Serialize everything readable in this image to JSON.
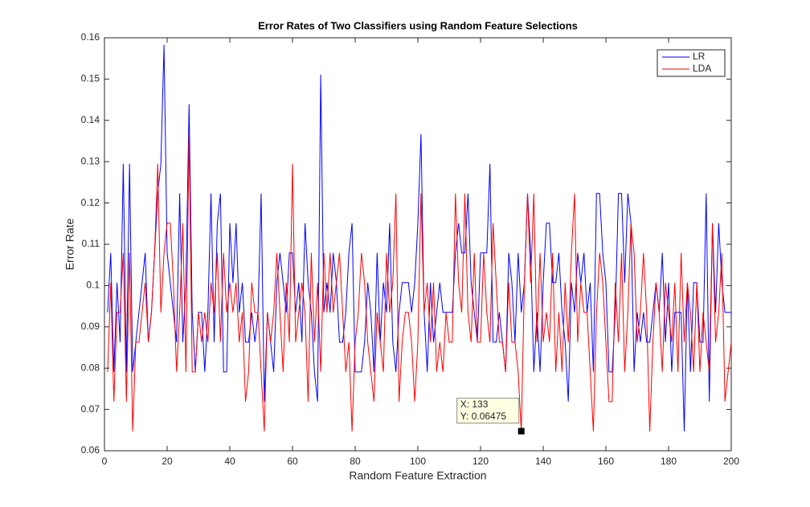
{
  "chart_data": {
    "type": "line",
    "title": "Error Rates of Two Classifiers using Random Feature Selections",
    "x_label": "Random Feature Extraction",
    "y_label": "Error Rate",
    "xlim": [
      0,
      200
    ],
    "xticks": [
      0,
      20,
      40,
      60,
      80,
      100,
      120,
      140,
      160,
      180,
      200
    ],
    "ylim": [
      0.06,
      0.16
    ],
    "yticks": [
      0.06,
      0.07,
      0.08,
      0.09,
      0.1,
      0.11,
      0.12,
      0.13,
      0.14,
      0.15,
      0.16
    ],
    "legend": "top-right",
    "x": [
      1,
      2,
      3,
      4,
      5,
      6,
      7,
      8,
      9,
      10,
      11,
      12,
      13,
      14,
      15,
      16,
      17,
      18,
      19,
      20,
      21,
      22,
      23,
      24,
      25,
      26,
      27,
      28,
      29,
      30,
      31,
      32,
      33,
      34,
      35,
      36,
      37,
      38,
      39,
      40,
      41,
      42,
      43,
      44,
      45,
      46,
      47,
      48,
      49,
      50,
      51,
      52,
      53,
      54,
      55,
      56,
      57,
      58,
      59,
      60,
      61,
      62,
      63,
      64,
      65,
      66,
      67,
      68,
      69,
      70,
      71,
      72,
      73,
      74,
      75,
      76,
      77,
      78,
      79,
      80,
      81,
      82,
      83,
      84,
      85,
      86,
      87,
      88,
      89,
      90,
      91,
      92,
      93,
      94,
      95,
      96,
      97,
      98,
      99,
      100,
      101,
      102,
      103,
      104,
      105,
      106,
      107,
      108,
      109,
      110,
      111,
      112,
      113,
      114,
      115,
      116,
      117,
      118,
      119,
      120,
      121,
      122,
      123,
      124,
      125,
      126,
      127,
      128,
      129,
      130,
      131,
      132,
      133,
      134,
      135,
      136,
      137,
      138,
      139,
      140,
      141,
      142,
      143,
      144,
      145,
      146,
      147,
      148,
      149,
      150,
      151,
      152,
      153,
      154,
      155,
      156,
      157,
      158,
      159,
      160,
      161,
      162,
      163,
      164,
      165,
      166,
      167,
      168,
      169,
      170,
      171,
      172,
      173,
      174,
      175,
      176,
      177,
      178,
      179,
      180,
      181,
      182,
      183,
      184,
      185,
      186,
      187,
      188,
      189,
      190,
      191,
      192,
      193,
      194,
      195,
      196,
      197,
      198,
      199,
      200
    ],
    "series": [
      {
        "name": "LR",
        "color": "#0000ff",
        "values": [
          0.0935,
          0.1079,
          0.0791,
          0.1007,
          0.0863,
          0.1295,
          0.0791,
          0.1295,
          0.0791,
          0.0863,
          0.0935,
          0.1007,
          0.1079,
          0.0863,
          0.0935,
          0.1079,
          0.1223,
          0.1295,
          0.1583,
          0.1079,
          0.1007,
          0.0935,
          0.0863,
          0.1223,
          0.0863,
          0.1007,
          0.1439,
          0.0935,
          0.0791,
          0.0935,
          0.0935,
          0.0791,
          0.0935,
          0.1223,
          0.0863,
          0.1151,
          0.1223,
          0.0791,
          0.0791,
          0.1151,
          0.1007,
          0.1151,
          0.0935,
          0.1007,
          0.0863,
          0.0863,
          0.0935,
          0.0863,
          0.0935,
          0.1223,
          0.0719,
          0.0935,
          0.0863,
          0.0791,
          0.1007,
          0.1079,
          0.1007,
          0.0935,
          0.1079,
          0.1079,
          0.0935,
          0.1007,
          0.0863,
          0.1151,
          0.1007,
          0.0935,
          0.0791,
          0.0719,
          0.1511,
          0.0935,
          0.1007,
          0.0935,
          0.1079,
          0.1007,
          0.0863,
          0.0863,
          0.0935,
          0.1079,
          0.1151,
          0.0791,
          0.0791,
          0.0791,
          0.0863,
          0.1007,
          0.0935,
          0.0791,
          0.1079,
          0.0863,
          0.1007,
          0.0935,
          0.1151,
          0.0863,
          0.0791,
          0.0935,
          0.1007,
          0.1007,
          0.1007,
          0.0935,
          0.1007,
          0.1151,
          0.1367,
          0.0935,
          0.0791,
          0.1007,
          0.0863,
          0.0935,
          0.1007,
          0.0935,
          0.0935,
          0.0935,
          0.0935,
          0.1079,
          0.1151,
          0.1079,
          0.1079,
          0.1223,
          0.1007,
          0.0935,
          0.0863,
          0.1079,
          0.1079,
          0.1079,
          0.1295,
          0.0863,
          0.0863,
          0.0935,
          0.0863,
          0.0791,
          0.1079,
          0.1007,
          0.0863,
          0.1079,
          0.0935,
          0.1007,
          0.1223,
          0.1079,
          0.0791,
          0.0935,
          0.0791,
          0.1007,
          0.1151,
          0.1151,
          0.1007,
          0.1007,
          0.1079,
          0.0935,
          0.0863,
          0.0719,
          0.1007,
          0.0935,
          0.1079,
          0.1007,
          0.1079,
          0.0935,
          0.1007,
          0.0791,
          0.1223,
          0.1223,
          0.1079,
          0.1007,
          0.0791,
          0.0791,
          0.0935,
          0.1223,
          0.1223,
          0.1007,
          0.1223,
          0.1151,
          0.0791,
          0.0935,
          0.0863,
          0.0935,
          0.0863,
          0.0863,
          0.0935,
          0.1007,
          0.0935,
          0.1079,
          0.0863,
          0.1007,
          0.0791,
          0.0935,
          0.0935,
          0.0935,
          0.0647,
          0.1007,
          0.0791,
          0.1007,
          0.1007,
          0.0863,
          0.0863,
          0.1223,
          0.0719,
          0.1151,
          0.0935,
          0.1151,
          0.1007,
          0.0935,
          0.0935,
          0.0935
        ]
      },
      {
        "name": "LDA",
        "color": "#ff0000",
        "values": [
          0.0791,
          0.1007,
          0.0719,
          0.0935,
          0.0935,
          0.1079,
          0.0719,
          0.1079,
          0.0647,
          0.0863,
          0.0863,
          0.0935,
          0.1007,
          0.0863,
          0.0935,
          0.1079,
          0.1295,
          0.0935,
          0.1079,
          0.1151,
          0.1151,
          0.1007,
          0.0791,
          0.0935,
          0.1151,
          0.0791,
          0.1367,
          0.0791,
          0.0791,
          0.0935,
          0.0863,
          0.0935,
          0.0863,
          0.1007,
          0.0935,
          0.1079,
          0.0863,
          0.1079,
          0.0935,
          0.1007,
          0.0935,
          0.1007,
          0.0863,
          0.0935,
          0.0719,
          0.0791,
          0.1007,
          0.0935,
          0.0935,
          0.0791,
          0.0647,
          0.0935,
          0.0863,
          0.0935,
          0.1079,
          0.0935,
          0.0791,
          0.1007,
          0.0863,
          0.1295,
          0.0863,
          0.0935,
          0.1007,
          0.0935,
          0.0719,
          0.1079,
          0.0863,
          0.1007,
          0.0791,
          0.1079,
          0.0935,
          0.1079,
          0.0935,
          0.1007,
          0.1079,
          0.0935,
          0.0791,
          0.0863,
          0.0647,
          0.0863,
          0.0935,
          0.1079,
          0.1007,
          0.0863,
          0.0791,
          0.0719,
          0.0935,
          0.0863,
          0.0791,
          0.1079,
          0.0935,
          0.1007,
          0.1223,
          0.0719,
          0.0863,
          0.0935,
          0.0935,
          0.0863,
          0.0719,
          0.0863,
          0.1223,
          0.0935,
          0.1007,
          0.0863,
          0.1007,
          0.0791,
          0.0863,
          0.0791,
          0.0935,
          0.0863,
          0.0863,
          0.1223,
          0.1007,
          0.0935,
          0.1223,
          0.0935,
          0.0863,
          0.1079,
          0.0863,
          0.0863,
          0.1079,
          0.0935,
          0.0863,
          0.1151,
          0.1007,
          0.0863,
          0.0863,
          0.0791,
          0.1007,
          0.0863,
          0.0863,
          0.0791,
          0.0647,
          0.1007,
          0.1223,
          0.1007,
          0.1223,
          0.0863,
          0.1079,
          0.0863,
          0.0935,
          0.0863,
          0.1079,
          0.0791,
          0.0935,
          0.0791,
          0.1007,
          0.0863,
          0.1079,
          0.1223,
          0.0863,
          0.1007,
          0.0935,
          0.0935,
          0.0791,
          0.0647,
          0.0935,
          0.1079,
          0.1007,
          0.0863,
          0.0719,
          0.0719,
          0.1007,
          0.0863,
          0.1079,
          0.0791,
          0.0935,
          0.1151,
          0.1079,
          0.0863,
          0.0935,
          0.1079,
          0.0935,
          0.0647,
          0.0863,
          0.1007,
          0.0935,
          0.0791,
          0.1007,
          0.0935,
          0.0863,
          0.1007,
          0.0791,
          0.1079,
          0.0863,
          0.1007,
          0.0935,
          0.0791,
          0.1007,
          0.0791,
          0.0935,
          0.0863,
          0.0791,
          0.1151,
          0.0863,
          0.0935,
          0.1079,
          0.0719,
          0.0791,
          0.0863
        ]
      }
    ],
    "annotation": {
      "x": 133,
      "y": 0.06475,
      "text": [
        "X: 133",
        "Y: 0.06475"
      ]
    }
  }
}
